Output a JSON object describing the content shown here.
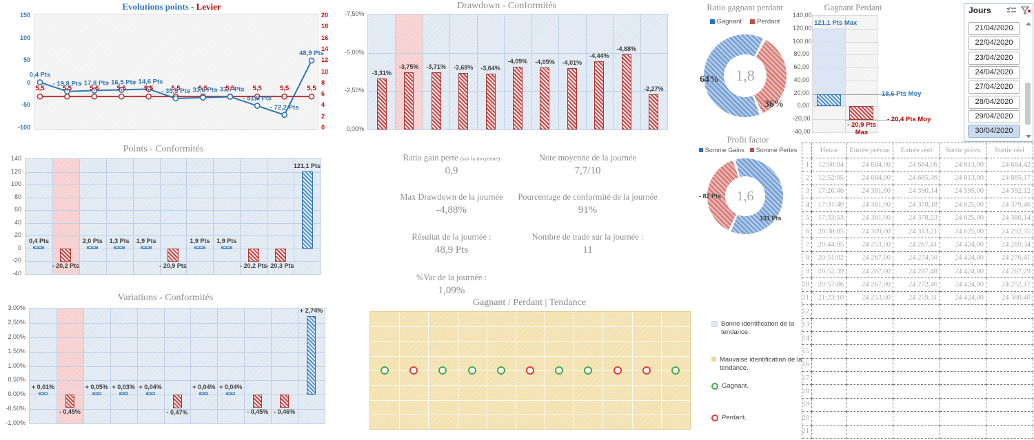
{
  "colors": {
    "blue": "#2e75b6",
    "red": "#c00000",
    "axis_red": "#e00000",
    "donut_blue": "#7aa3d6",
    "donut_red": "#d8807c",
    "panel_blue_bg": "#dce6f1",
    "nonconformity_pink": "#f6caca",
    "tendance_yellow": "#f2dfa9",
    "green_marker": "#3fae49",
    "red_marker": "#e23b3b"
  },
  "chart_data": {
    "evolutions": {
      "type": "line",
      "title_points": "Evolutions points",
      "title_sep": " - ",
      "title_levier": "Levier",
      "left_axis_ticks": [
        "150",
        "100",
        "50",
        "0",
        "-50",
        "-100"
      ],
      "left_axis_range": [
        -100,
        150
      ],
      "right_axis_ticks": [
        "20",
        "18",
        "16",
        "14",
        "12",
        "10",
        "8",
        "6",
        "4",
        "2",
        "0"
      ],
      "right_axis_range": [
        0,
        20
      ],
      "points": [
        0.4,
        -19.8,
        -17.8,
        -16.5,
        -14.6,
        -35.5,
        -33.6,
        -31.7,
        -51.9,
        -72.2,
        48.9
      ],
      "point_labels": [
        "0,4 Pts",
        "- 19,8 Pts",
        "- 17,8 Pts",
        "- 16,5 Pts",
        "- 14,6 Pts",
        "- 35,5 Pts",
        "- 33,6 Pts",
        "- 31,7 Pts",
        "- 51,9 Pts",
        "- 72,2 Pts",
        "48,9 Pts"
      ],
      "levier_value": 5.5,
      "levier_label": "5,5"
    },
    "drawdown": {
      "type": "bar",
      "title": "Drawdown - Conformités",
      "values": [
        -3.31,
        -3.75,
        -3.71,
        -3.68,
        -3.64,
        -4.09,
        -4.05,
        -4.01,
        -4.44,
        -4.88,
        -2.27
      ],
      "labels": [
        "-3,31%",
        "-3,75%",
        "-3,71%",
        "-3,68%",
        "-3,64%",
        "-4,09%",
        "-4,05%",
        "-4,01%",
        "-4,44%",
        "-4,88%",
        "-2,27%"
      ],
      "yticks": [
        "-7,50%",
        "-5,00%",
        "-2,50%",
        "0,00%"
      ],
      "ylim": [
        -7.5,
        0
      ],
      "nonconformity_index": 1
    },
    "points": {
      "type": "bar",
      "title": "Points - Conformités",
      "values": [
        0.4,
        -20.2,
        2.0,
        1.3,
        1.9,
        -20.9,
        1.9,
        1.9,
        -20.2,
        -20.3,
        121.1
      ],
      "labels": [
        "0,4 Pts",
        "- 20,2 Pts",
        "2,0 Pts",
        "1,3 Pts",
        "1,9 Pts",
        "- 20,9 Pts",
        "1,9 Pts",
        "1,9 Pts",
        "- 20,2 Pts",
        "- 20,3 Pts",
        "121,1 Pts"
      ],
      "yticks": [
        "140",
        "120",
        "100",
        "80",
        "60",
        "40",
        "20",
        "0",
        "-20",
        "-40"
      ],
      "ylim": [
        -40,
        140
      ],
      "nonconformity_index": 1
    },
    "variations": {
      "type": "bar",
      "title": "Variations - Conformités",
      "values": [
        0.01,
        -0.45,
        0.05,
        0.03,
        0.04,
        -0.47,
        0.04,
        0.04,
        -0.45,
        -0.46,
        2.74
      ],
      "labels": [
        "+ 0,01%",
        "- 0,45%",
        "+ 0,05%",
        "+ 0,03%",
        "+ 0,04%",
        "- 0,47%",
        "+ 0,04%",
        "+ 0,04%",
        "- 0,45%",
        "- 0,46%",
        "+ 2,74%"
      ],
      "yticks": [
        "3,00%",
        "2,50%",
        "2,00%",
        "1,50%",
        "1,00%",
        "0,50%",
        "0,00%",
        "-0,50%",
        "-1,00%"
      ],
      "ylim": [
        -1,
        3
      ],
      "nonconformity_index": 1
    },
    "ratio_donut": {
      "type": "donut",
      "title": "Ratio gagnant perdant",
      "legend": [
        "Gagnant",
        "Perdant"
      ],
      "segments": [
        {
          "name": "Gagnant",
          "pct": 64,
          "label": "64%",
          "color": "#7aa3d6"
        },
        {
          "name": "Perdant",
          "pct": 36,
          "label": "36%",
          "color": "#d8807c"
        }
      ],
      "conic_from": 30,
      "conic_order": [
        1,
        0
      ],
      "center": "1,8"
    },
    "gagnant_perdant": {
      "type": "bar",
      "title": "Gagnant Perdant",
      "yticks": [
        "140,00",
        "120,00",
        "100,00",
        "80,00",
        "60,00",
        "40,00",
        "20,00",
        "0,00",
        "-20,00",
        "-40,00"
      ],
      "ylim": [
        -40,
        140
      ],
      "max_gagnant": 121.1,
      "moy_gagnant": 18.6,
      "max_perdant": -20.9,
      "moy_perdant": -20.4,
      "labels": {
        "max_gagnant": "121,1 Pts Max",
        "moy_gagnant": "18,6 Pts Moy",
        "max_perdant": "- 20,9 Pts Max",
        "moy_perdant": "- 20,4 Pts Moy"
      }
    },
    "profit_donut": {
      "type": "donut",
      "title": "Profit factor",
      "legend": [
        "Somme Gains",
        "Somme Pertes"
      ],
      "segments": [
        {
          "name": "Somme Gains",
          "pct": 61.5,
          "label": "131 Pts",
          "color": "#7aa3d6"
        },
        {
          "name": "Somme Pertes",
          "pct": 38.5,
          "label": "- 82 Pts",
          "color": "#d8807c"
        }
      ],
      "conic_from": -15,
      "conic_order": [
        0,
        1
      ],
      "center": "1,6"
    },
    "tendance": {
      "type": "scatter",
      "title": "Gagnant / Perdant | Tendance",
      "sequence": [
        "gagnant",
        "perdant",
        "gagnant",
        "gagnant",
        "gagnant",
        "perdant",
        "gagnant",
        "gagnant",
        "perdant",
        "perdant",
        "gagnant"
      ],
      "grid": {
        "cols": 11,
        "rows": 8
      }
    }
  },
  "kpis": {
    "col1": [
      {
        "label": "Ratio gain perte ",
        "sub": "(sur la moyenne)",
        "value": "0,9"
      },
      {
        "label": "Max Drawdown de la journée",
        "sub": "",
        "value": "-4,88%"
      },
      {
        "label": "Résultat de la journée :",
        "sub": "",
        "value": "48,9 Pts"
      },
      {
        "label": "%Var de la journée :",
        "sub": "",
        "value": "1,09%"
      }
    ],
    "col2": [
      {
        "label": "Note moyenne de la journée",
        "sub": "",
        "value": "7,7/10"
      },
      {
        "label": "Pourcentage de conformité de la journée",
        "sub": "",
        "value": "91%"
      },
      {
        "label": "Nombre de trade sur la journée :",
        "sub": "",
        "value": "11"
      }
    ]
  },
  "slicer": {
    "title": "Jours",
    "items": [
      "21/04/2020",
      "22/04/2020",
      "23/04/2020",
      "24/04/2020",
      "27/04/2020",
      "28/04/2020",
      "29/04/2020",
      "30/04/2020"
    ],
    "selected_index": 7
  },
  "table": {
    "headers": [
      "",
      "Heure",
      "Entrée prévue",
      "Entrée réel",
      "Sortie prévu",
      "Sortie réel"
    ],
    "total_rows": 21,
    "rows": [
      [
        "1",
        "12:50:04",
        "24 684,00",
        "24 684,06",
        "24 813,00",
        "24 684,42"
      ],
      [
        "2",
        "12:52:05",
        "24 684,00",
        "24 685,36",
        "24 813,00",
        "24 665,17"
      ],
      [
        "3",
        "17:26:46",
        "24 381,00",
        "24 390,14",
        "24 595,00",
        "24 392,12"
      ],
      [
        "4",
        "17:31:40",
        "24 361,00",
        "24 378,18",
        "24 625,00",
        "24 379,46"
      ],
      [
        "5",
        "17:33:53",
        "24 361,00",
        "24 378,23",
        "24 625,00",
        "24 380,14"
      ],
      [
        "6",
        "20:38:05",
        "24 309,00",
        "24 313,21",
        "24 625,00",
        "24 292,35"
      ],
      [
        "7",
        "20:44:05",
        "24 253,00",
        "24 267,41",
        "24 424,00",
        "24 269,34"
      ],
      [
        "8",
        "20:51:02",
        "24 267,00",
        "24 274,50",
        "24 424,00",
        "24 276,41"
      ],
      [
        "9",
        "20:52:39",
        "24 267,00",
        "24 287,48",
        "24 424,00",
        "24 267,29"
      ],
      [
        "10",
        "20:57:06",
        "24 267,00",
        "24 272,46",
        "24 424,00",
        "24 252,17"
      ],
      [
        "11",
        "21:23:10",
        "24 253,00",
        "24 259,31",
        "24 424,00",
        "24 380,40"
      ]
    ]
  },
  "tendance_legend": [
    {
      "swatch": "square-light",
      "text": "Bonne identification de la tendance."
    },
    {
      "swatch": "square-yellow",
      "text": "Mauvaise identification de la tendance."
    },
    {
      "swatch": "ring-green",
      "text": "Gagnant."
    },
    {
      "swatch": "ring-red",
      "text": "Perdant."
    }
  ]
}
